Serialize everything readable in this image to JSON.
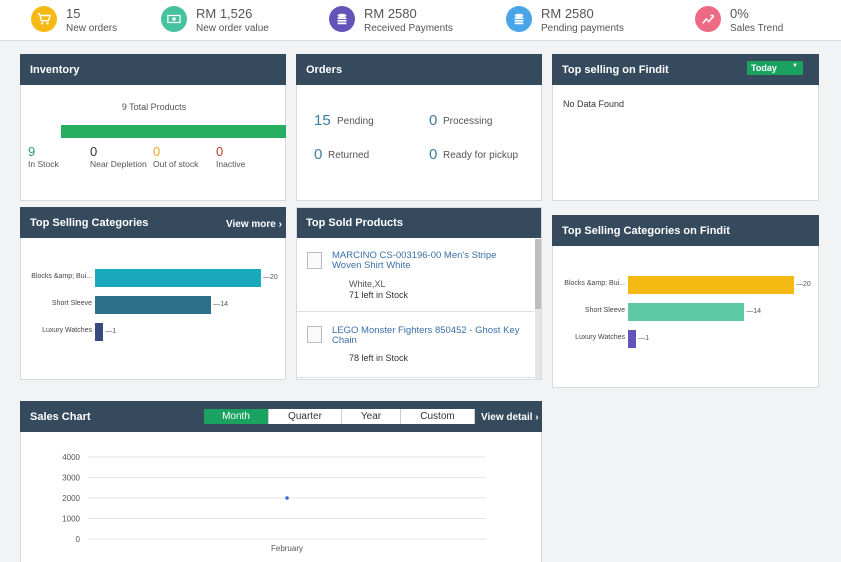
{
  "stats": [
    {
      "value": "15",
      "label": "New orders",
      "icon": "cart-icon",
      "color": "#f5b914"
    },
    {
      "value": "RM 1,526",
      "label": "New order value",
      "icon": "money-icon",
      "color": "#47c29e"
    },
    {
      "value": "RM 2580",
      "label": "Received Payments",
      "icon": "coins-icon",
      "color": "#6453b8"
    },
    {
      "value": "RM 2580",
      "label": "Pending payments",
      "icon": "coins-icon",
      "color": "#4aa4e8"
    },
    {
      "value": "0%",
      "label": "Sales Trend",
      "icon": "trend-icon",
      "color": "#ee6a84"
    }
  ],
  "inventory": {
    "title": "Inventory",
    "total_label": "9 Total Products",
    "stock_fraction": 1.0,
    "counts": [
      {
        "value": "9",
        "label": "In Stock",
        "color": "#2a9d72"
      },
      {
        "value": "0",
        "label": "Near Depletion",
        "color": "#333333"
      },
      {
        "value": "0",
        "label": "Out of stock",
        "color": "#f5a623"
      },
      {
        "value": "0",
        "label": "Inactive",
        "color": "#c0392b"
      }
    ]
  },
  "orders": {
    "title": "Orders",
    "items": [
      {
        "value": "15",
        "label": "Pending"
      },
      {
        "value": "0",
        "label": "Processing"
      },
      {
        "value": "0",
        "label": "Returned"
      },
      {
        "value": "0",
        "label": "Ready for pickup"
      }
    ]
  },
  "findit_top": {
    "title": "Top selling on Findit",
    "dropdown": "Today",
    "empty": "No Data Found"
  },
  "top_categories": {
    "title": "Top Selling Categories",
    "view_more": "View more",
    "chart_data": {
      "type": "bar",
      "categories": [
        "Blocks &amp; Bui...",
        "Short Sleeve",
        "Luxury Watches"
      ],
      "values": [
        20,
        14,
        1
      ],
      "colors": [
        "#1aa8bd",
        "#2b6f8a",
        "#364a7e"
      ],
      "xlim": [
        0,
        20
      ]
    }
  },
  "top_sold": {
    "title": "Top Sold Products",
    "products": [
      {
        "name": "MARCINO CS-003196-00 Men's Stripe Woven Shirt White",
        "variant": "White,XL",
        "stock": "71 left in Stock"
      },
      {
        "name": "LEGO Monster Fighters 850452 - Ghost Key Chain",
        "variant": "",
        "stock": "78 left in Stock"
      }
    ]
  },
  "findit_categories": {
    "title": "Top Selling Categories on Findit",
    "chart_data": {
      "type": "bar",
      "categories": [
        "Blocks &amp; Bui...",
        "Short Sleeve",
        "Luxury Watches"
      ],
      "values": [
        20,
        14,
        1
      ],
      "colors": [
        "#f5b914",
        "#5cc8a4",
        "#6453b8"
      ],
      "xlim": [
        0,
        20
      ]
    }
  },
  "sales_chart": {
    "title": "Sales Chart",
    "tabs": [
      "Month",
      "Quarter",
      "Year",
      "Custom"
    ],
    "active_tab": "Month",
    "view_detail": "View detail",
    "chart_data": {
      "type": "scatter",
      "x": [
        "February"
      ],
      "y": [
        2000
      ],
      "yticks": [
        4000,
        3000,
        2000,
        1000,
        0
      ],
      "ylim": [
        0,
        4000
      ],
      "grid": true,
      "color": "#2b6fd6"
    }
  }
}
